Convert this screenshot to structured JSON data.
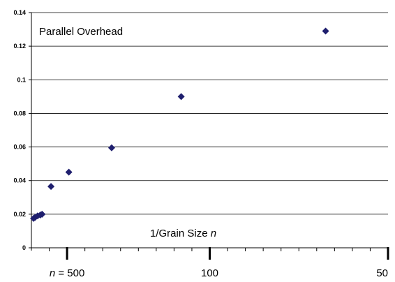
{
  "chart_data": {
    "type": "scatter",
    "title": "Parallel Overhead",
    "xlabel": "1/Grain Size n",
    "ylabel": "",
    "x_scale": "reciprocal",
    "xlim": [
      0,
      0.02
    ],
    "ylim": [
      0,
      0.14
    ],
    "yticks": [
      0,
      0.02,
      0.04,
      0.06,
      0.08,
      0.1,
      0.12,
      0.14
    ],
    "ytick_labels": [
      "0",
      "0.02",
      "0.04",
      "0.06",
      "0.08",
      "0.1",
      "0.12",
      "0.14"
    ],
    "xticks": [
      {
        "n": 500,
        "label": "n = 500"
      },
      {
        "n": 100,
        "label": "100"
      },
      {
        "n": 50,
        "label": "50"
      }
    ],
    "grid": true,
    "marker_color": "#1f1f6e",
    "series": [
      {
        "points": [
          {
            "x": 0.00012,
            "y": 0.0175
          },
          {
            "x": 0.0002,
            "y": 0.018
          },
          {
            "x": 0.00035,
            "y": 0.019
          },
          {
            "x": 0.0005,
            "y": 0.0195
          },
          {
            "x": 0.0006,
            "y": 0.02
          },
          {
            "x": 0.0011,
            "y": 0.0365
          },
          {
            "x": 0.0021,
            "y": 0.045
          },
          {
            "x": 0.0045,
            "y": 0.0595
          },
          {
            "x": 0.0084,
            "y": 0.09
          },
          {
            "x": 0.0165,
            "y": 0.129
          }
        ]
      }
    ]
  }
}
